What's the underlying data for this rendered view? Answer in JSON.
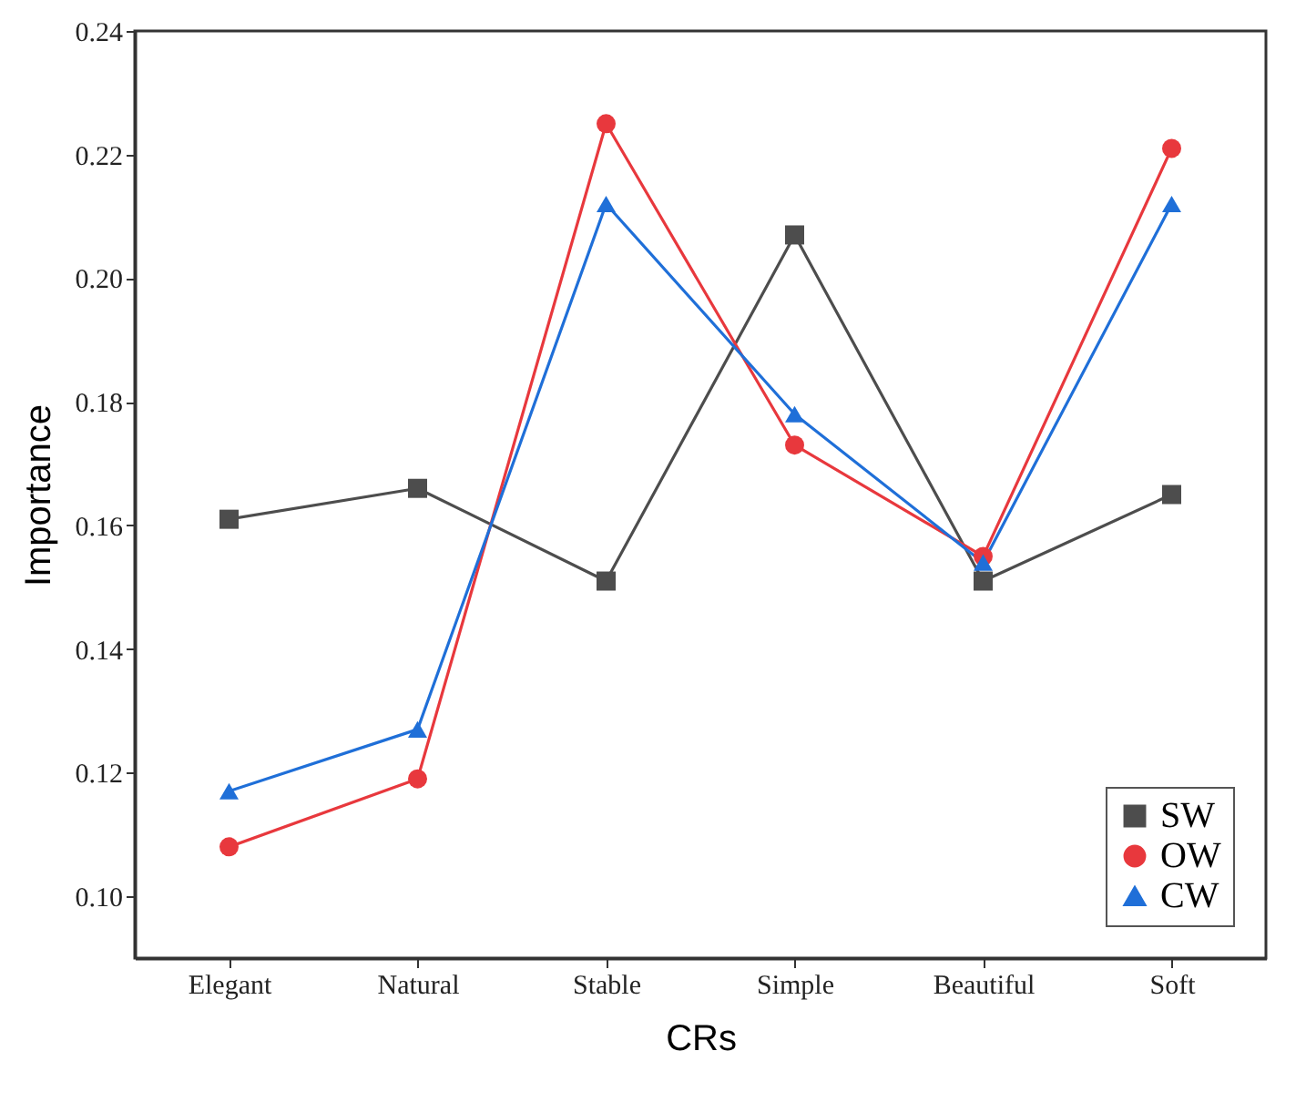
{
  "chart_data": {
    "type": "line",
    "xlabel": "CRs",
    "ylabel": "Importance",
    "categories": [
      "Elegant",
      "Natural",
      "Stable",
      "Simple",
      "Beautiful",
      "Soft"
    ],
    "series": [
      {
        "name": "SW",
        "color": "#4d4d4d",
        "marker": "square",
        "values": [
          0.161,
          0.166,
          0.151,
          0.207,
          0.151,
          0.165
        ]
      },
      {
        "name": "OW",
        "color": "#e8383d",
        "marker": "circle",
        "values": [
          0.108,
          0.119,
          0.225,
          0.173,
          0.155,
          0.221
        ]
      },
      {
        "name": "CW",
        "color": "#1f6fd8",
        "marker": "triangle",
        "values": [
          0.117,
          0.127,
          0.212,
          0.178,
          0.154,
          0.212
        ]
      }
    ],
    "ylim": [
      0.09,
      0.24
    ],
    "yticks": [
      {
        "value": 0.1,
        "label": "0.10"
      },
      0.12,
      0.14,
      0.16,
      0.18,
      {
        "value": 0.2,
        "label": "0.20"
      },
      0.22,
      0.24
    ],
    "grid": false,
    "legend": "bottom right",
    "line_style": "solid"
  }
}
